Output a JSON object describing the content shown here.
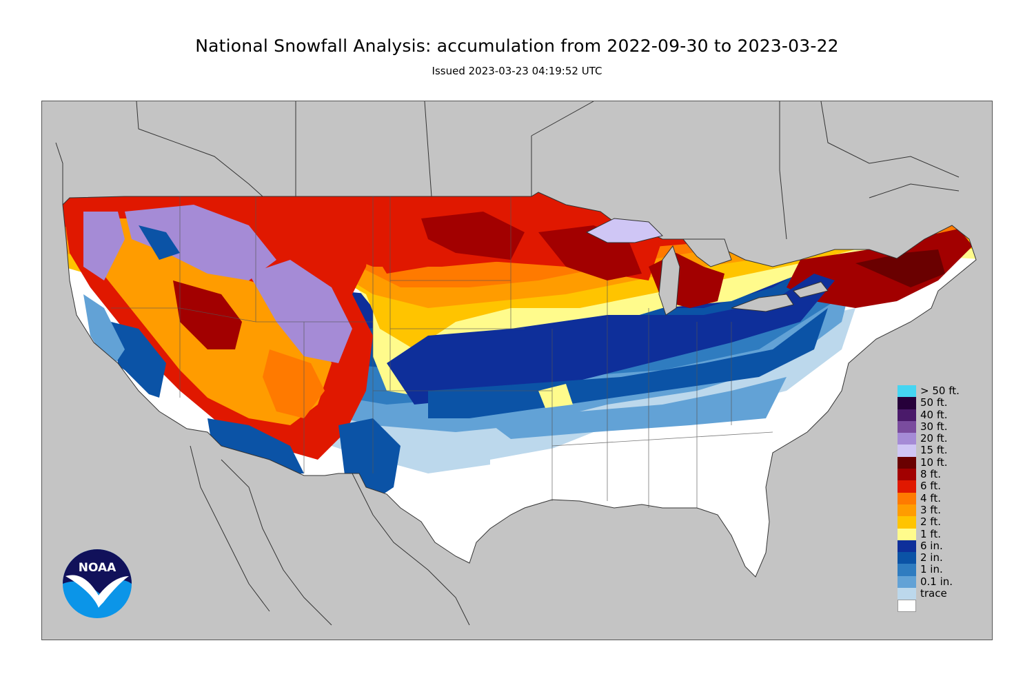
{
  "title": "National Snowfall Analysis: accumulation from 2022-09-30 to 2023-03-22",
  "subtitle": "Issued 2023-03-23 04:19:52 UTC",
  "legend": [
    {
      "label": "> 50 ft.",
      "color": "#45d5f2"
    },
    {
      "label": "50 ft.",
      "color": "#26003a"
    },
    {
      "label": "40 ft.",
      "color": "#4a1a6a"
    },
    {
      "label": "30 ft.",
      "color": "#7a4c9e"
    },
    {
      "label": "20 ft.",
      "color": "#a58bd6"
    },
    {
      "label": "15 ft.",
      "color": "#cfc6f5"
    },
    {
      "label": "10 ft.",
      "color": "#6a0000"
    },
    {
      "label": "8 ft.",
      "color": "#a20000"
    },
    {
      "label": "6 ft.",
      "color": "#e01800"
    },
    {
      "label": "4 ft.",
      "color": "#ff7a00"
    },
    {
      "label": "3 ft.",
      "color": "#ff9c00"
    },
    {
      "label": "2 ft.",
      "color": "#ffc400"
    },
    {
      "label": "1 ft.",
      "color": "#fffb8c"
    },
    {
      "label": "6 in.",
      "color": "#0e2f9a"
    },
    {
      "label": "2 in.",
      "color": "#0b53a6"
    },
    {
      "label": "1 in.",
      "color": "#2f7cc0"
    },
    {
      "label": "0.1 in.",
      "color": "#62a2d6"
    },
    {
      "label": "trace",
      "color": "#bcd8ec"
    },
    {
      "label": "",
      "color": "#ffffff"
    }
  ],
  "logo_text": "NOAA"
}
